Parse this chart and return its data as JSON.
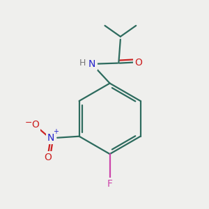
{
  "background_color": "#efefed",
  "bond_color": "#2d6b5e",
  "atom_colors": {
    "N": "#2222cc",
    "O": "#cc2222",
    "F": "#cc44aa",
    "H": "#777777",
    "C": "#2d6b5e"
  },
  "figsize": [
    3.0,
    3.0
  ],
  "dpi": 100,
  "bond_lw": 1.6,
  "font_size": 10
}
